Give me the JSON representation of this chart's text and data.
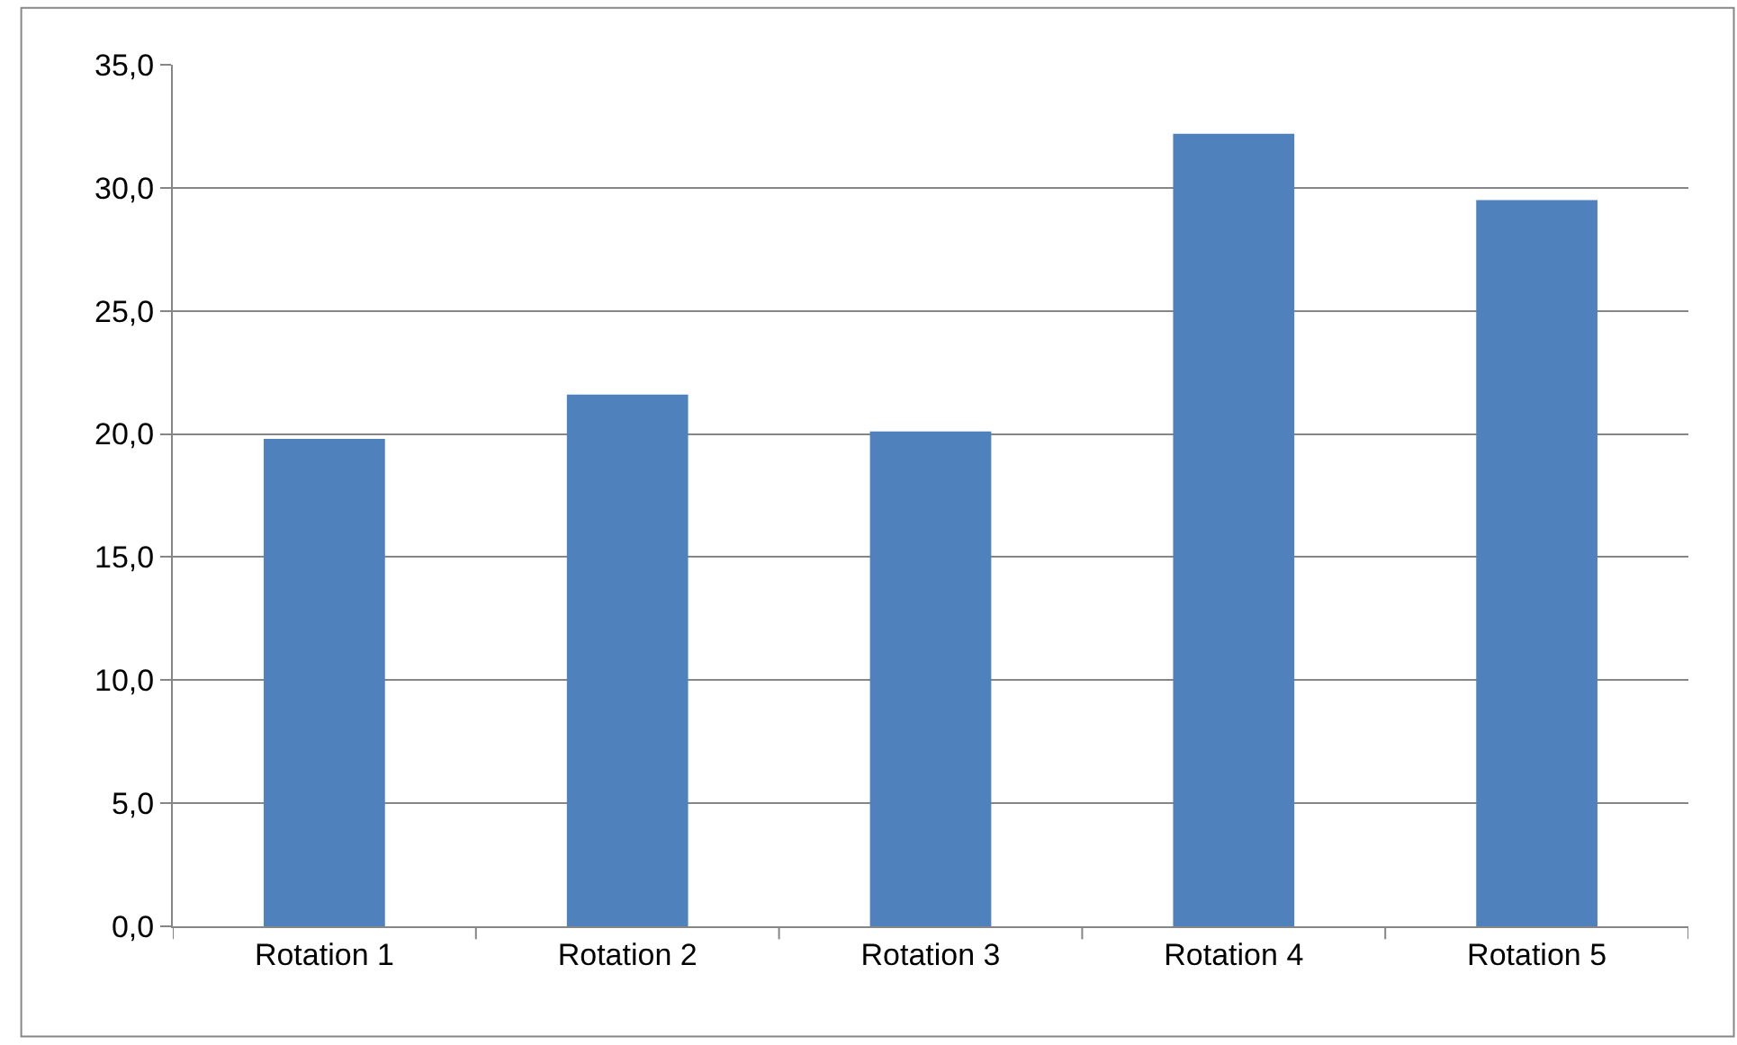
{
  "chart_data": {
    "type": "bar",
    "categories": [
      "Rotation 1",
      "Rotation 2",
      "Rotation 3",
      "Rotation 4",
      "Rotation 5"
    ],
    "values": [
      19.8,
      21.6,
      20.1,
      32.2,
      29.5
    ],
    "color": "#4f81bd",
    "ylim": [
      0,
      35
    ],
    "yticks": [
      {
        "value": 0,
        "label": "0,0"
      },
      {
        "value": 5,
        "label": "5,0"
      },
      {
        "value": 10,
        "label": "10,0"
      },
      {
        "value": 15,
        "label": "15,0"
      },
      {
        "value": 20,
        "label": "20,0"
      },
      {
        "value": 25,
        "label": "25,0"
      },
      {
        "value": 30,
        "label": "30,0"
      },
      {
        "value": 35,
        "label": "35,0"
      }
    ],
    "grid": "y"
  }
}
